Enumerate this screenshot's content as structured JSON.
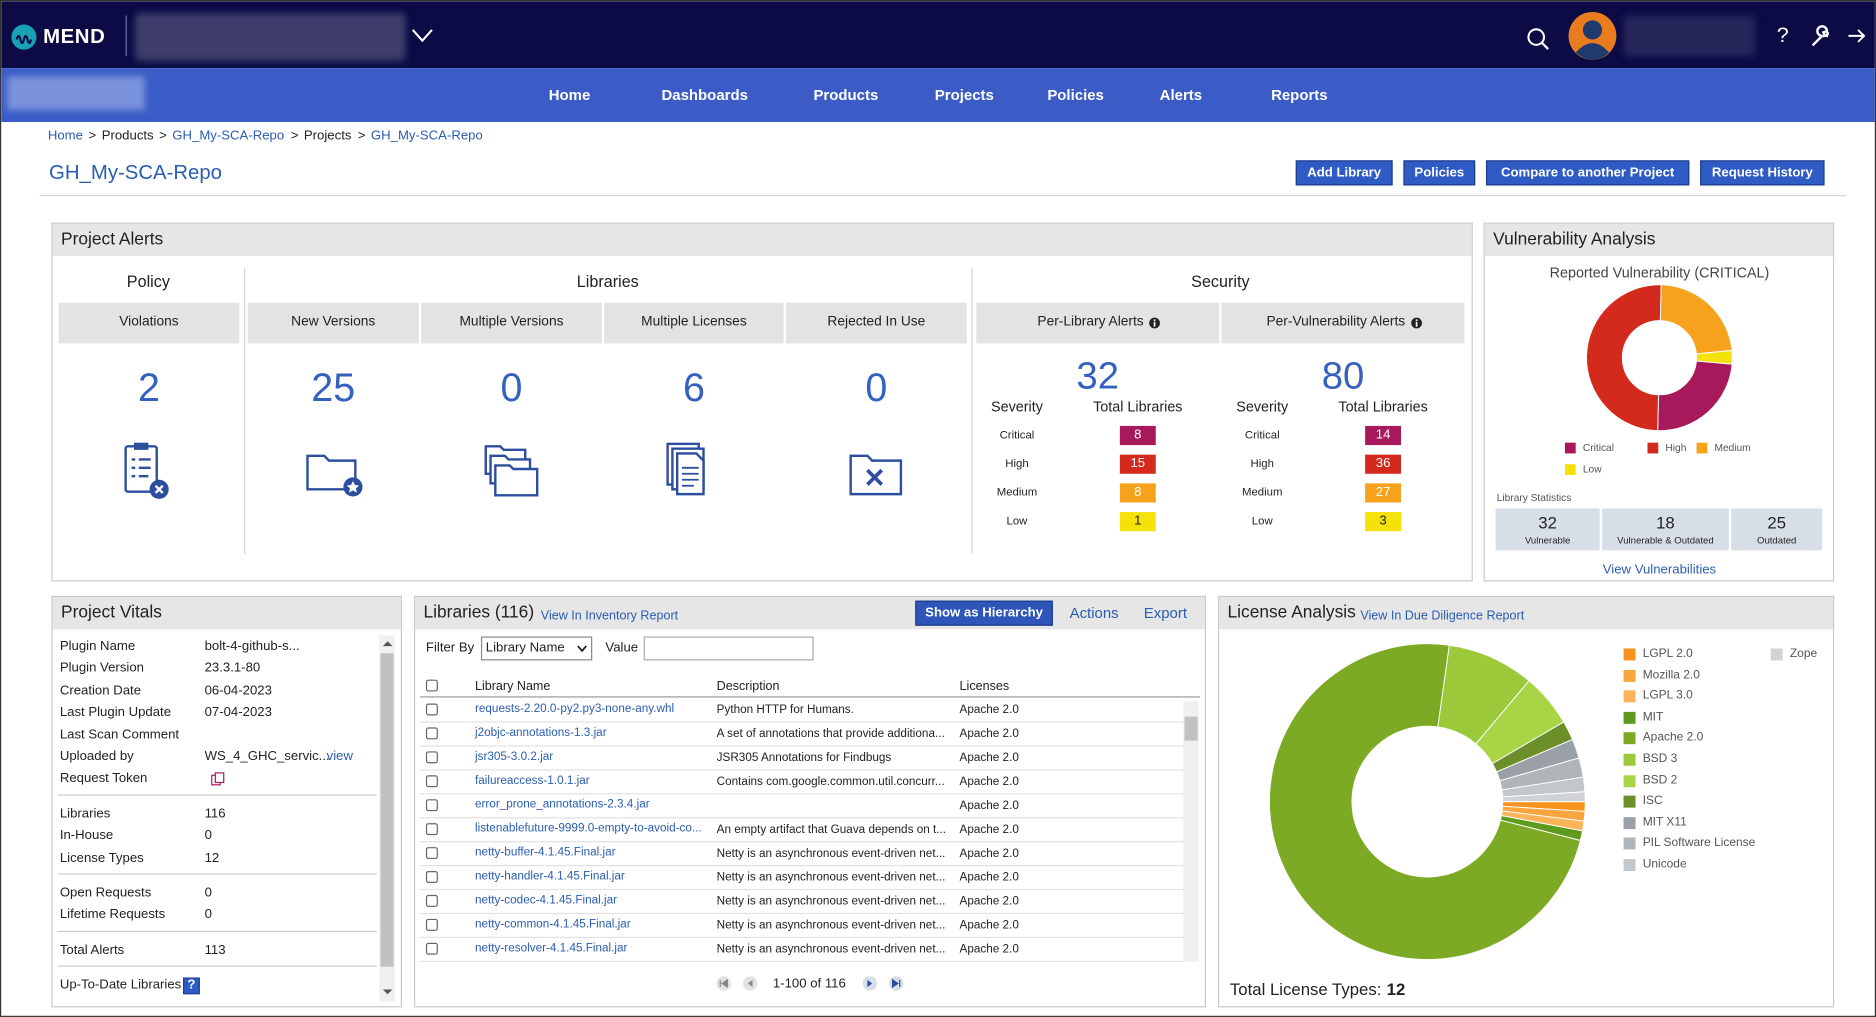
{
  "header": {
    "logo": "MEND",
    "help": "?"
  },
  "nav": {
    "items": [
      "Home",
      "Dashboards",
      "Products",
      "Projects",
      "Policies",
      "Alerts",
      "Reports"
    ]
  },
  "breadcrumb": {
    "separator": ">",
    "items": [
      {
        "text": "Home",
        "link": true
      },
      {
        "text": "Products",
        "link": false
      },
      {
        "text": "GH_My-SCA-Repo",
        "link": true
      },
      {
        "text": "Projects",
        "link": false
      },
      {
        "text": "GH_My-SCA-Repo",
        "link": true
      }
    ]
  },
  "page_title": "GH_My-SCA-Repo",
  "actions": [
    "Add Library",
    "Policies",
    "Compare to another Project",
    "Request History"
  ],
  "project_alerts": {
    "title": "Project Alerts",
    "groups": [
      "Policy",
      "Libraries",
      "Security"
    ],
    "cards": [
      {
        "label": "Violations",
        "value": 2
      },
      {
        "label": "New Versions",
        "value": 25
      },
      {
        "label": "Multiple Versions",
        "value": 0
      },
      {
        "label": "Multiple Licenses",
        "value": 6
      },
      {
        "label": "Rejected In Use",
        "value": 0
      }
    ],
    "security": {
      "severity_header": "Severity",
      "count_header": "Total Libraries",
      "columns": [
        {
          "label": "Per-Library Alerts",
          "total": 32,
          "rows": [
            {
              "severity": "Critical",
              "count": 8,
              "color": "#a8195c"
            },
            {
              "severity": "High",
              "count": 15,
              "color": "#d42a1d"
            },
            {
              "severity": "Medium",
              "count": 8,
              "color": "#f6a21c"
            },
            {
              "severity": "Low",
              "count": 1,
              "color": "#f5e20a"
            }
          ]
        },
        {
          "label": "Per-Vulnerability Alerts",
          "total": 80,
          "rows": [
            {
              "severity": "Critical",
              "count": 14,
              "color": "#a8195c"
            },
            {
              "severity": "High",
              "count": 36,
              "color": "#d42a1d"
            },
            {
              "severity": "Medium",
              "count": 27,
              "color": "#f6a21c"
            },
            {
              "severity": "Low",
              "count": 3,
              "color": "#f5e20a"
            }
          ]
        }
      ]
    }
  },
  "vulnerability_analysis": {
    "title": "Vulnerability Analysis",
    "statistics_title": "Library Statistics",
    "statistics": [
      {
        "value": 32,
        "label": "Vulnerable"
      },
      {
        "value": 18,
        "label": "Vulnerable & Outdated"
      },
      {
        "value": 25,
        "label": "Outdated"
      }
    ],
    "link": "View Vulnerabilities"
  },
  "project_vitals": {
    "title": "Project Vitals",
    "groups": [
      [
        {
          "label": "Plugin Name",
          "value": "bolt-4-github-s..."
        },
        {
          "label": "Plugin Version",
          "value": "23.3.1-80"
        },
        {
          "label": "Creation Date",
          "value": "06-04-2023"
        },
        {
          "label": "Last Plugin Update",
          "value": "07-04-2023"
        },
        {
          "label": "Last Scan Comment"
        },
        {
          "label": "Uploaded by",
          "value": "WS_4_GHC_servic...",
          "link": "view"
        },
        {
          "label": "Request Token"
        }
      ],
      [
        {
          "label": "Libraries",
          "value": "116"
        },
        {
          "label": "In-House",
          "value": "0"
        },
        {
          "label": "License Types",
          "value": "12"
        }
      ],
      [
        {
          "label": "Open Requests",
          "value": "0"
        },
        {
          "label": "Lifetime Requests",
          "value": "0"
        }
      ],
      [
        {
          "label": "Total Alerts",
          "value": "113"
        }
      ],
      [
        {
          "label": "Up-To-Date Libraries"
        }
      ]
    ]
  },
  "libraries": {
    "title": "Libraries (116)",
    "link": "View In Inventory Report",
    "hierarchy_button": "Show as Hierarchy",
    "actions": [
      "Actions",
      "Export"
    ],
    "filter_label": "Filter By",
    "filter_select": "Library Name",
    "value_label": "Value",
    "columns": [
      "Library Name",
      "Description",
      "Licenses"
    ],
    "rows": [
      {
        "name": "requests-2.20.0-py2.py3-none-any.whl",
        "description": "Python HTTP for Humans.",
        "license": "Apache 2.0"
      },
      {
        "name": "j2objc-annotations-1.3.jar",
        "description": "A set of annotations that provide additiona...",
        "license": "Apache 2.0"
      },
      {
        "name": "jsr305-3.0.2.jar",
        "description": "JSR305 Annotations for Findbugs",
        "license": "Apache 2.0"
      },
      {
        "name": "failureaccess-1.0.1.jar",
        "description": "Contains com.google.common.util.concurr...",
        "license": "Apache 2.0"
      },
      {
        "name": "error_prone_annotations-2.3.4.jar",
        "license": "Apache 2.0"
      },
      {
        "name": "listenablefuture-9999.0-empty-to-avoid-co...",
        "description": "An empty artifact that Guava depends on t...",
        "license": "Apache 2.0"
      },
      {
        "name": "netty-buffer-4.1.45.Final.jar",
        "description": "Netty is an asynchronous event-driven net...",
        "license": "Apache 2.0"
      },
      {
        "name": "netty-handler-4.1.45.Final.jar",
        "description": "Netty is an asynchronous event-driven net...",
        "license": "Apache 2.0"
      },
      {
        "name": "netty-codec-4.1.45.Final.jar",
        "description": "Netty is an asynchronous event-driven net...",
        "license": "Apache 2.0"
      },
      {
        "name": "netty-common-4.1.45.Final.jar",
        "description": "Netty is an asynchronous event-driven net...",
        "license": "Apache 2.0"
      },
      {
        "name": "netty-resolver-4.1.45.Final.jar",
        "description": "Netty is an asynchronous event-driven net...",
        "license": "Apache 2.0"
      }
    ],
    "pagination": "1-100 of 116"
  },
  "license_analysis": {
    "title": "License Analysis",
    "link": "View In Due Diligence Report",
    "total_label": "Total License Types:",
    "total": 12
  },
  "chart_data": [
    {
      "type": "donut",
      "title": "Reported Vulnerability (CRITICAL)",
      "categories": [
        "Critical",
        "High",
        "Medium",
        "Low"
      ],
      "values": [
        24,
        50,
        23,
        3
      ],
      "colors": [
        "#a8195c",
        "#d42a1d",
        "#f6a21c",
        "#f5e20a"
      ]
    },
    {
      "type": "donut",
      "categories": [
        "LGPL 2.0",
        "Mozilla 2.0",
        "LGPL 3.0",
        "MIT",
        "Apache 2.0",
        "BSD 3",
        "BSD 2",
        "ISC",
        "MIT X11",
        "PIL Software License",
        "Unicode",
        "Zope"
      ],
      "values": [
        1,
        1,
        1,
        1,
        74,
        9,
        5.5,
        2,
        2,
        2,
        1.5,
        1
      ],
      "colors": [
        "#f7941d",
        "#f9a53f",
        "#fbb45a",
        "#5e9a1c",
        "#7caa24",
        "#9cc93a",
        "#a9d446",
        "#6c8f2a",
        "#9aa0a6",
        "#b0b5ba",
        "#c2c7cb",
        "#cfd3d6"
      ]
    }
  ]
}
